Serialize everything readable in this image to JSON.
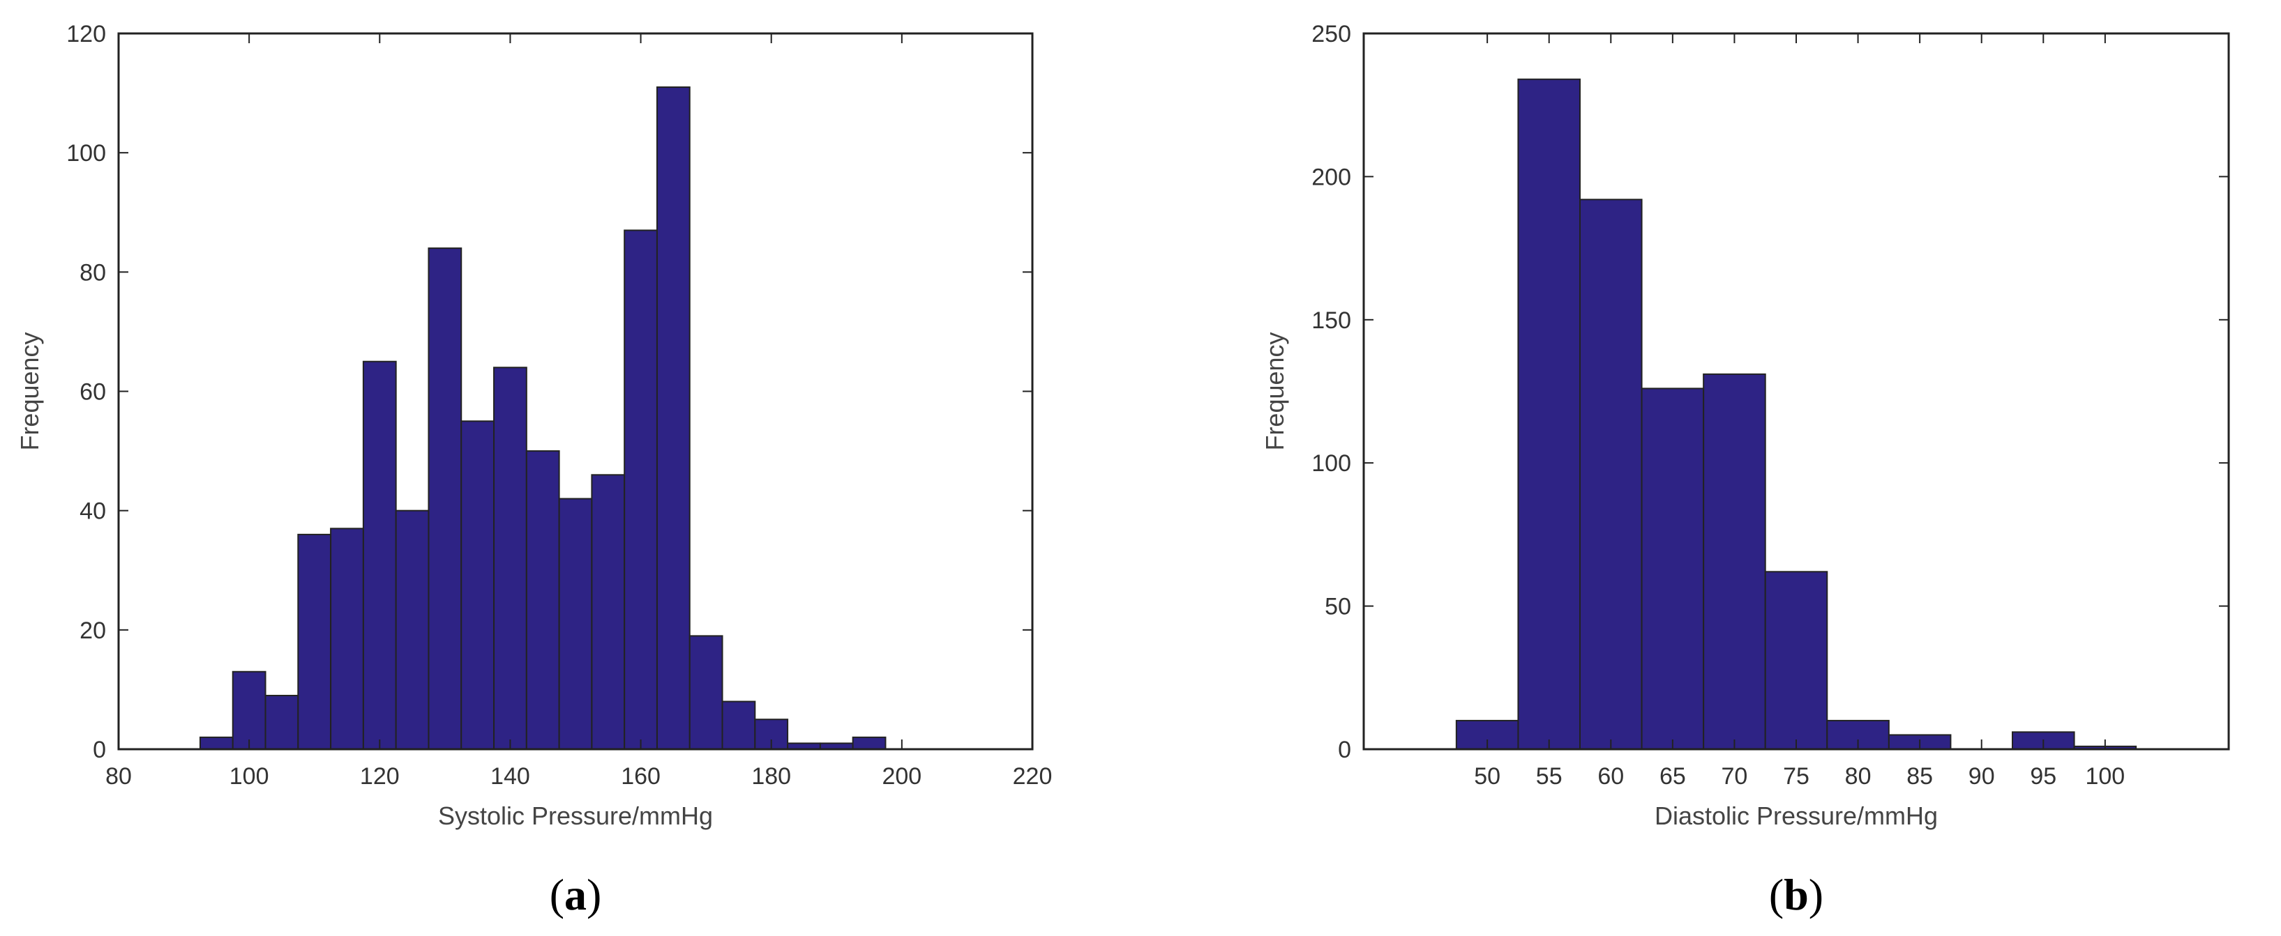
{
  "chart_data": [
    {
      "type": "bar",
      "panel_label": "a",
      "xlabel": "Systolic Pressure/mmHg",
      "ylabel": "Frequency",
      "xlim": [
        80,
        220
      ],
      "ylim": [
        0,
        120
      ],
      "xticks": [
        80,
        100,
        120,
        140,
        160,
        180,
        200,
        220
      ],
      "yticks": [
        0,
        20,
        40,
        60,
        80,
        100,
        120
      ],
      "bin_width": 5,
      "bins": [
        {
          "x": 95,
          "value": 2
        },
        {
          "x": 100,
          "value": 13
        },
        {
          "x": 105,
          "value": 9
        },
        {
          "x": 110,
          "value": 36
        },
        {
          "x": 115,
          "value": 37
        },
        {
          "x": 120,
          "value": 65
        },
        {
          "x": 125,
          "value": 40
        },
        {
          "x": 130,
          "value": 84
        },
        {
          "x": 135,
          "value": 55
        },
        {
          "x": 140,
          "value": 64
        },
        {
          "x": 145,
          "value": 50
        },
        {
          "x": 150,
          "value": 42
        },
        {
          "x": 155,
          "value": 46
        },
        {
          "x": 160,
          "value": 87
        },
        {
          "x": 165,
          "value": 111
        },
        {
          "x": 170,
          "value": 19
        },
        {
          "x": 175,
          "value": 8
        },
        {
          "x": 180,
          "value": 5
        },
        {
          "x": 185,
          "value": 1
        },
        {
          "x": 190,
          "value": 1
        },
        {
          "x": 195,
          "value": 2
        }
      ],
      "grid": false,
      "bar_color": "#2e2385",
      "edge_color": "#222222"
    },
    {
      "type": "bar",
      "panel_label": "b",
      "xlabel": "Diastolic Pressure/mmHg",
      "ylabel": "Frequency",
      "xlim": [
        40,
        110
      ],
      "ylim": [
        0,
        250
      ],
      "xticks": [
        50,
        55,
        60,
        65,
        70,
        75,
        80,
        85,
        90,
        95,
        100
      ],
      "yticks": [
        0,
        50,
        100,
        150,
        200,
        250
      ],
      "bin_width": 5,
      "bins": [
        {
          "x": 50,
          "value": 10
        },
        {
          "x": 55,
          "value": 234
        },
        {
          "x": 60,
          "value": 192
        },
        {
          "x": 65,
          "value": 126
        },
        {
          "x": 70,
          "value": 131
        },
        {
          "x": 75,
          "value": 62
        },
        {
          "x": 80,
          "value": 10
        },
        {
          "x": 85,
          "value": 5
        },
        {
          "x": 90,
          "value": 0
        },
        {
          "x": 95,
          "value": 6
        },
        {
          "x": 100,
          "value": 1
        }
      ],
      "grid": false,
      "bar_color": "#2e2385",
      "edge_color": "#222222"
    }
  ]
}
